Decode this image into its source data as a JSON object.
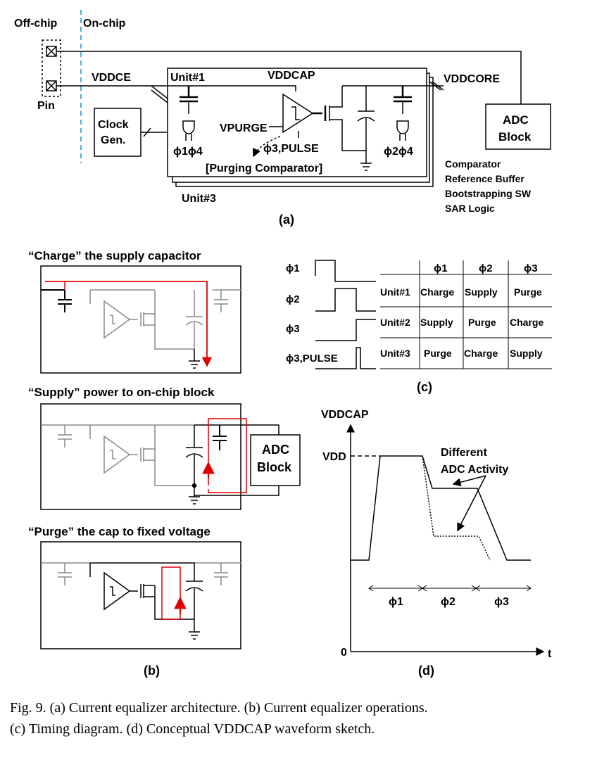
{
  "panel_a": {
    "off_chip": "Off-chip",
    "on_chip": "On-chip",
    "pin": "Pin",
    "vddce": "VDDCE",
    "unit1": "Unit#1",
    "vddcap": "VDDCAP",
    "vddcore": "VDDCORE",
    "clock_gen_line1": "Clock",
    "clock_gen_line2": "Gen.",
    "vpurge": "VPURGE",
    "phi1phi4": "ϕ1ϕ4",
    "phi3pulse": "ϕ3,PULSE",
    "phi2phi4": "ϕ2ϕ4",
    "purging_comparator": "[Purging Comparator]",
    "unit3": "Unit#3",
    "adc_line1": "ADC",
    "adc_line2": "Block",
    "adc_contents": [
      "Comparator",
      "Reference Buffer",
      "Bootstrapping SW",
      "SAR Logic"
    ],
    "label": "(a)"
  },
  "panel_b": {
    "title_charge": "“Charge” the supply capacitor",
    "title_supply": "“Supply” power to on-chip block",
    "title_purge": "“Purge” the cap to fixed voltage",
    "adc_line1": "ADC",
    "adc_line2": "Block",
    "label": "(b)"
  },
  "panel_c": {
    "signals": [
      "ϕ1",
      "ϕ2",
      "ϕ3",
      "ϕ3,PULSE"
    ],
    "table_headers": [
      "",
      "ϕ1",
      "ϕ2",
      "ϕ3"
    ],
    "table_rows": [
      [
        "Unit#1",
        "Charge",
        "Supply",
        "Purge"
      ],
      [
        "Unit#2",
        "Supply",
        "Purge",
        "Charge"
      ],
      [
        "Unit#3",
        "Purge",
        "Charge",
        "Supply"
      ]
    ],
    "label": "(c)"
  },
  "panel_d": {
    "y_axis_label": "VDDCAP",
    "vdd_label": "VDD",
    "zero_label": "0",
    "x_axis_label": "t",
    "annotation_line1": "Different",
    "annotation_line2": "ADC Activity",
    "phases": [
      "ϕ1",
      "ϕ2",
      "ϕ3"
    ],
    "label": "(d)"
  },
  "caption": {
    "line1": "Fig. 9.    (a) Current equalizer architecture. (b) Current equalizer operations.",
    "line2": "(c) Timing diagram. (d)  Conceptual VDDCAP waveform sketch."
  },
  "colors": {
    "highlight": "#e00000",
    "dim": "#8a8a8a",
    "dashed_boundary": "#1a8fd0"
  }
}
